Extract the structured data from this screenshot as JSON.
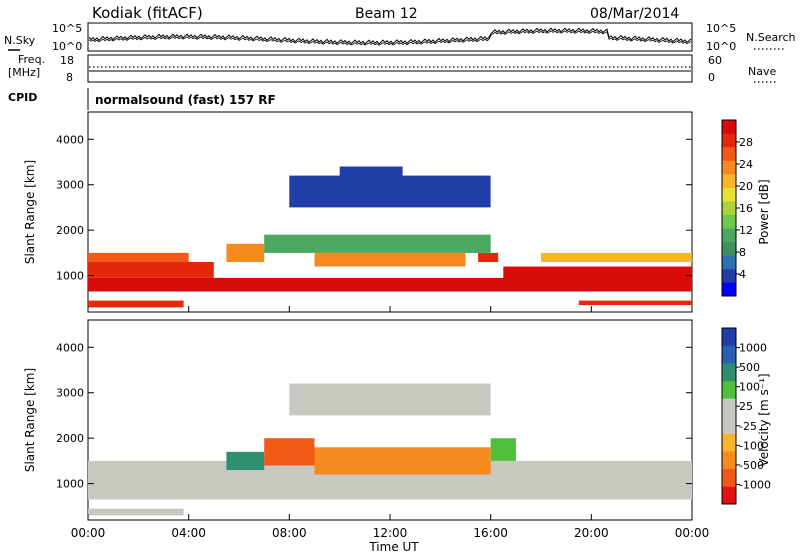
{
  "header": {
    "station": "Kodiak (fitACF)",
    "beam": "Beam 12",
    "date": "08/Mar/2014"
  },
  "strips": {
    "sky_label": "N.Sky",
    "search_label": "N.Search",
    "sky_ticks": [
      "10^5",
      "10^0"
    ],
    "search_ticks": [
      "10^5",
      "10^0"
    ],
    "freq_label_1": "Freq.",
    "freq_label_2": "[MHz]",
    "freq_ticks": [
      "18",
      "8"
    ],
    "nave_label": "Nave",
    "nave_ticks": [
      "60",
      "0"
    ],
    "cpid_label": "CPID",
    "cpid_value": "normalsound (fast) 157 RF"
  },
  "chart_data": [
    {
      "type": "heatmap",
      "name": "power",
      "ylabel": "Slant Range [km]",
      "xlabel": "Time UT",
      "y_ticks": [
        "1000",
        "2000",
        "3000",
        "4000"
      ],
      "ylim": [
        200,
        4600
      ],
      "x_ticks": [
        "00:00",
        "04:00",
        "08:00",
        "12:00",
        "16:00",
        "20:00",
        "00:00"
      ],
      "xlim_hours": [
        0,
        24
      ],
      "colorbar": {
        "label": "Power [dB]",
        "ticks": [
          "28",
          "24",
          "20",
          "16",
          "12",
          "8",
          "4"
        ],
        "colors": [
          "#0000ff",
          "#1f3ea8",
          "#2f6fb4",
          "#3f8f5f",
          "#4aa860",
          "#6cc94a",
          "#a8d33b",
          "#e9e032",
          "#f6b52a",
          "#f58a1f",
          "#f05a16",
          "#e5280c",
          "#d90a0a"
        ]
      },
      "regions": [
        {
          "t0": 0,
          "t1": 24,
          "r0": 650,
          "r1": 950,
          "c": 12
        },
        {
          "t0": 0,
          "t1": 5,
          "r0": 950,
          "r1": 1300,
          "c": 11
        },
        {
          "t0": 0,
          "t1": 4,
          "r0": 1300,
          "r1": 1500,
          "c": 10
        },
        {
          "t0": 0,
          "t1": 3.8,
          "r0": 300,
          "r1": 450,
          "c": 11
        },
        {
          "t0": 5.5,
          "t1": 7,
          "r0": 1300,
          "r1": 1700,
          "c": 9
        },
        {
          "t0": 7,
          "t1": 16,
          "r0": 1500,
          "r1": 1900,
          "c": 4
        },
        {
          "t0": 9,
          "t1": 15,
          "r0": 1200,
          "r1": 1500,
          "c": 9
        },
        {
          "t0": 15.5,
          "t1": 16.3,
          "r0": 1300,
          "r1": 1500,
          "c": 11
        },
        {
          "t0": 16.5,
          "t1": 24,
          "r0": 800,
          "r1": 1200,
          "c": 12
        },
        {
          "t0": 18,
          "t1": 24,
          "r0": 1300,
          "r1": 1500,
          "c": 8
        },
        {
          "t0": 19.5,
          "t1": 24,
          "r0": 350,
          "r1": 450,
          "c": 11
        },
        {
          "t0": 8,
          "t1": 16,
          "r0": 2500,
          "r1": 3200,
          "c": 1
        },
        {
          "t0": 10,
          "t1": 12.5,
          "r0": 3100,
          "r1": 3400,
          "c": 1
        }
      ]
    },
    {
      "type": "heatmap",
      "name": "velocity",
      "ylabel": "Slant Range [km]",
      "xlabel": "Time UT",
      "y_ticks": [
        "1000",
        "2000",
        "3000",
        "4000"
      ],
      "ylim": [
        200,
        4600
      ],
      "x_ticks": [
        "00:00",
        "04:00",
        "08:00",
        "12:00",
        "16:00",
        "20:00",
        "00:00"
      ],
      "xlim_hours": [
        0,
        24
      ],
      "colorbar": {
        "label": "Velocity [m s⁻¹]",
        "ticks": [
          "1000",
          "500",
          "100",
          "25",
          "-25",
          "-100",
          "-500",
          "-1000"
        ],
        "colors": [
          "#e51010",
          "#f05a16",
          "#f58a1f",
          "#f6b52a",
          "#c8c8c0",
          "#c8c8c0",
          "#4fbf3c",
          "#2f8f70",
          "#2a5fb0",
          "#1f3ea8"
        ]
      },
      "regions": [
        {
          "t0": 0,
          "t1": 24,
          "r0": 650,
          "r1": 1500,
          "c": 4
        },
        {
          "t0": 0,
          "t1": 3.8,
          "r0": 300,
          "r1": 450,
          "c": 4
        },
        {
          "t0": 5.5,
          "t1": 7,
          "r0": 1300,
          "r1": 1700,
          "c": 7
        },
        {
          "t0": 7,
          "t1": 9,
          "r0": 1400,
          "r1": 2000,
          "c": 1
        },
        {
          "t0": 9,
          "t1": 16,
          "r0": 1200,
          "r1": 1800,
          "c": 2
        },
        {
          "t0": 16,
          "t1": 17,
          "r0": 1500,
          "r1": 2000,
          "c": 6
        },
        {
          "t0": 8,
          "t1": 16,
          "r0": 2500,
          "r1": 3200,
          "c": 4
        }
      ]
    }
  ]
}
